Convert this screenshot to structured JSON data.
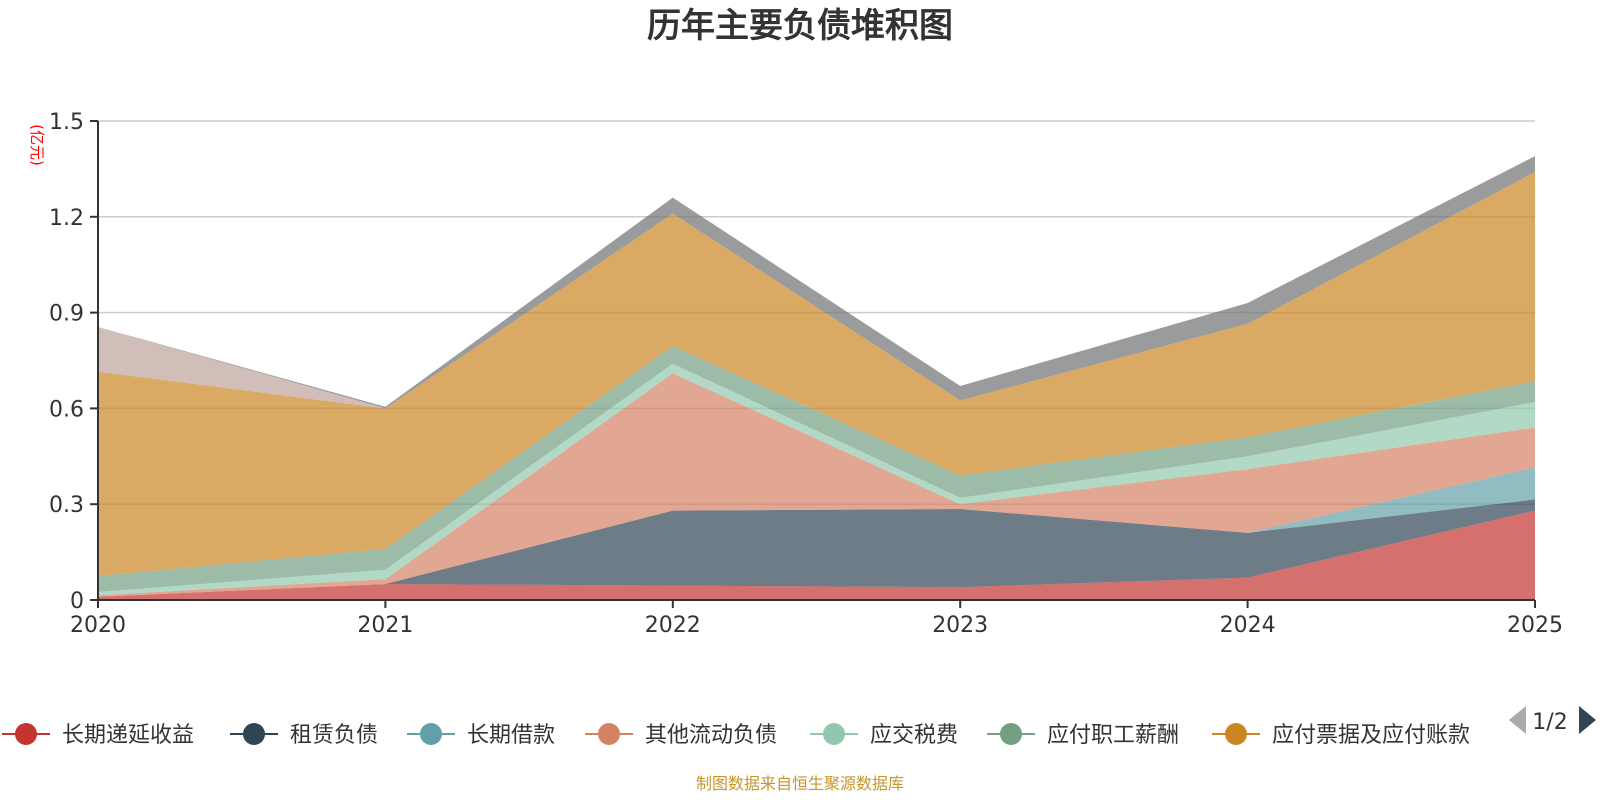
{
  "chart_data": {
    "type": "area",
    "title": "历年主要负债堆积图",
    "unit_label": "(亿元)",
    "x": [
      "2020",
      "2021",
      "2022",
      "2023",
      "2024",
      "2025"
    ],
    "ylim": [
      0,
      1.5
    ],
    "yticks": [
      "0",
      "0.3",
      "0.6",
      "0.9",
      "1.2",
      "1.5"
    ],
    "ytick_values": [
      0,
      0.3,
      0.6,
      0.9,
      1.2,
      1.5
    ],
    "stacked": true,
    "series": [
      {
        "name": "长期递延收益",
        "color": "#c23531",
        "values": [
          0.01,
          0.05,
          0.045,
          0.04,
          0.07,
          0.28
        ]
      },
      {
        "name": "租赁负债",
        "color": "#2f4554",
        "values": [
          0,
          0,
          0.235,
          0.245,
          0.14,
          0.035
        ]
      },
      {
        "name": "长期借款",
        "color": "#61a0a8",
        "values": [
          0,
          0,
          0,
          0,
          0,
          0.1
        ]
      },
      {
        "name": "其他流动负债",
        "color": "#d48265",
        "values": [
          0.005,
          0.015,
          0.43,
          0.015,
          0.2,
          0.125
        ]
      },
      {
        "name": "应交税费",
        "color": "#91c7ae",
        "values": [
          0.01,
          0.03,
          0.03,
          0.02,
          0.04,
          0.08
        ]
      },
      {
        "name": "应付职工薪酬",
        "color": "#749f83",
        "values": [
          0.05,
          0.065,
          0.055,
          0.07,
          0.06,
          0.065
        ]
      },
      {
        "name": "应付票据及应付账款",
        "color": "#ca8622",
        "values": [
          0.64,
          0.44,
          0.415,
          0.235,
          0.355,
          0.655
        ]
      },
      {
        "name": "",
        "color": "#bda29a",
        "values": [
          0.14,
          0,
          0,
          0,
          0,
          0
        ]
      },
      {
        "name": "",
        "color": "#6e7074",
        "values": [
          0,
          0.005,
          0.05,
          0.045,
          0.065,
          0.05
        ]
      }
    ],
    "legend_page": "1/2",
    "legend_placement": "bottom"
  },
  "source_note": "制图数据来自恒生聚源数据库"
}
